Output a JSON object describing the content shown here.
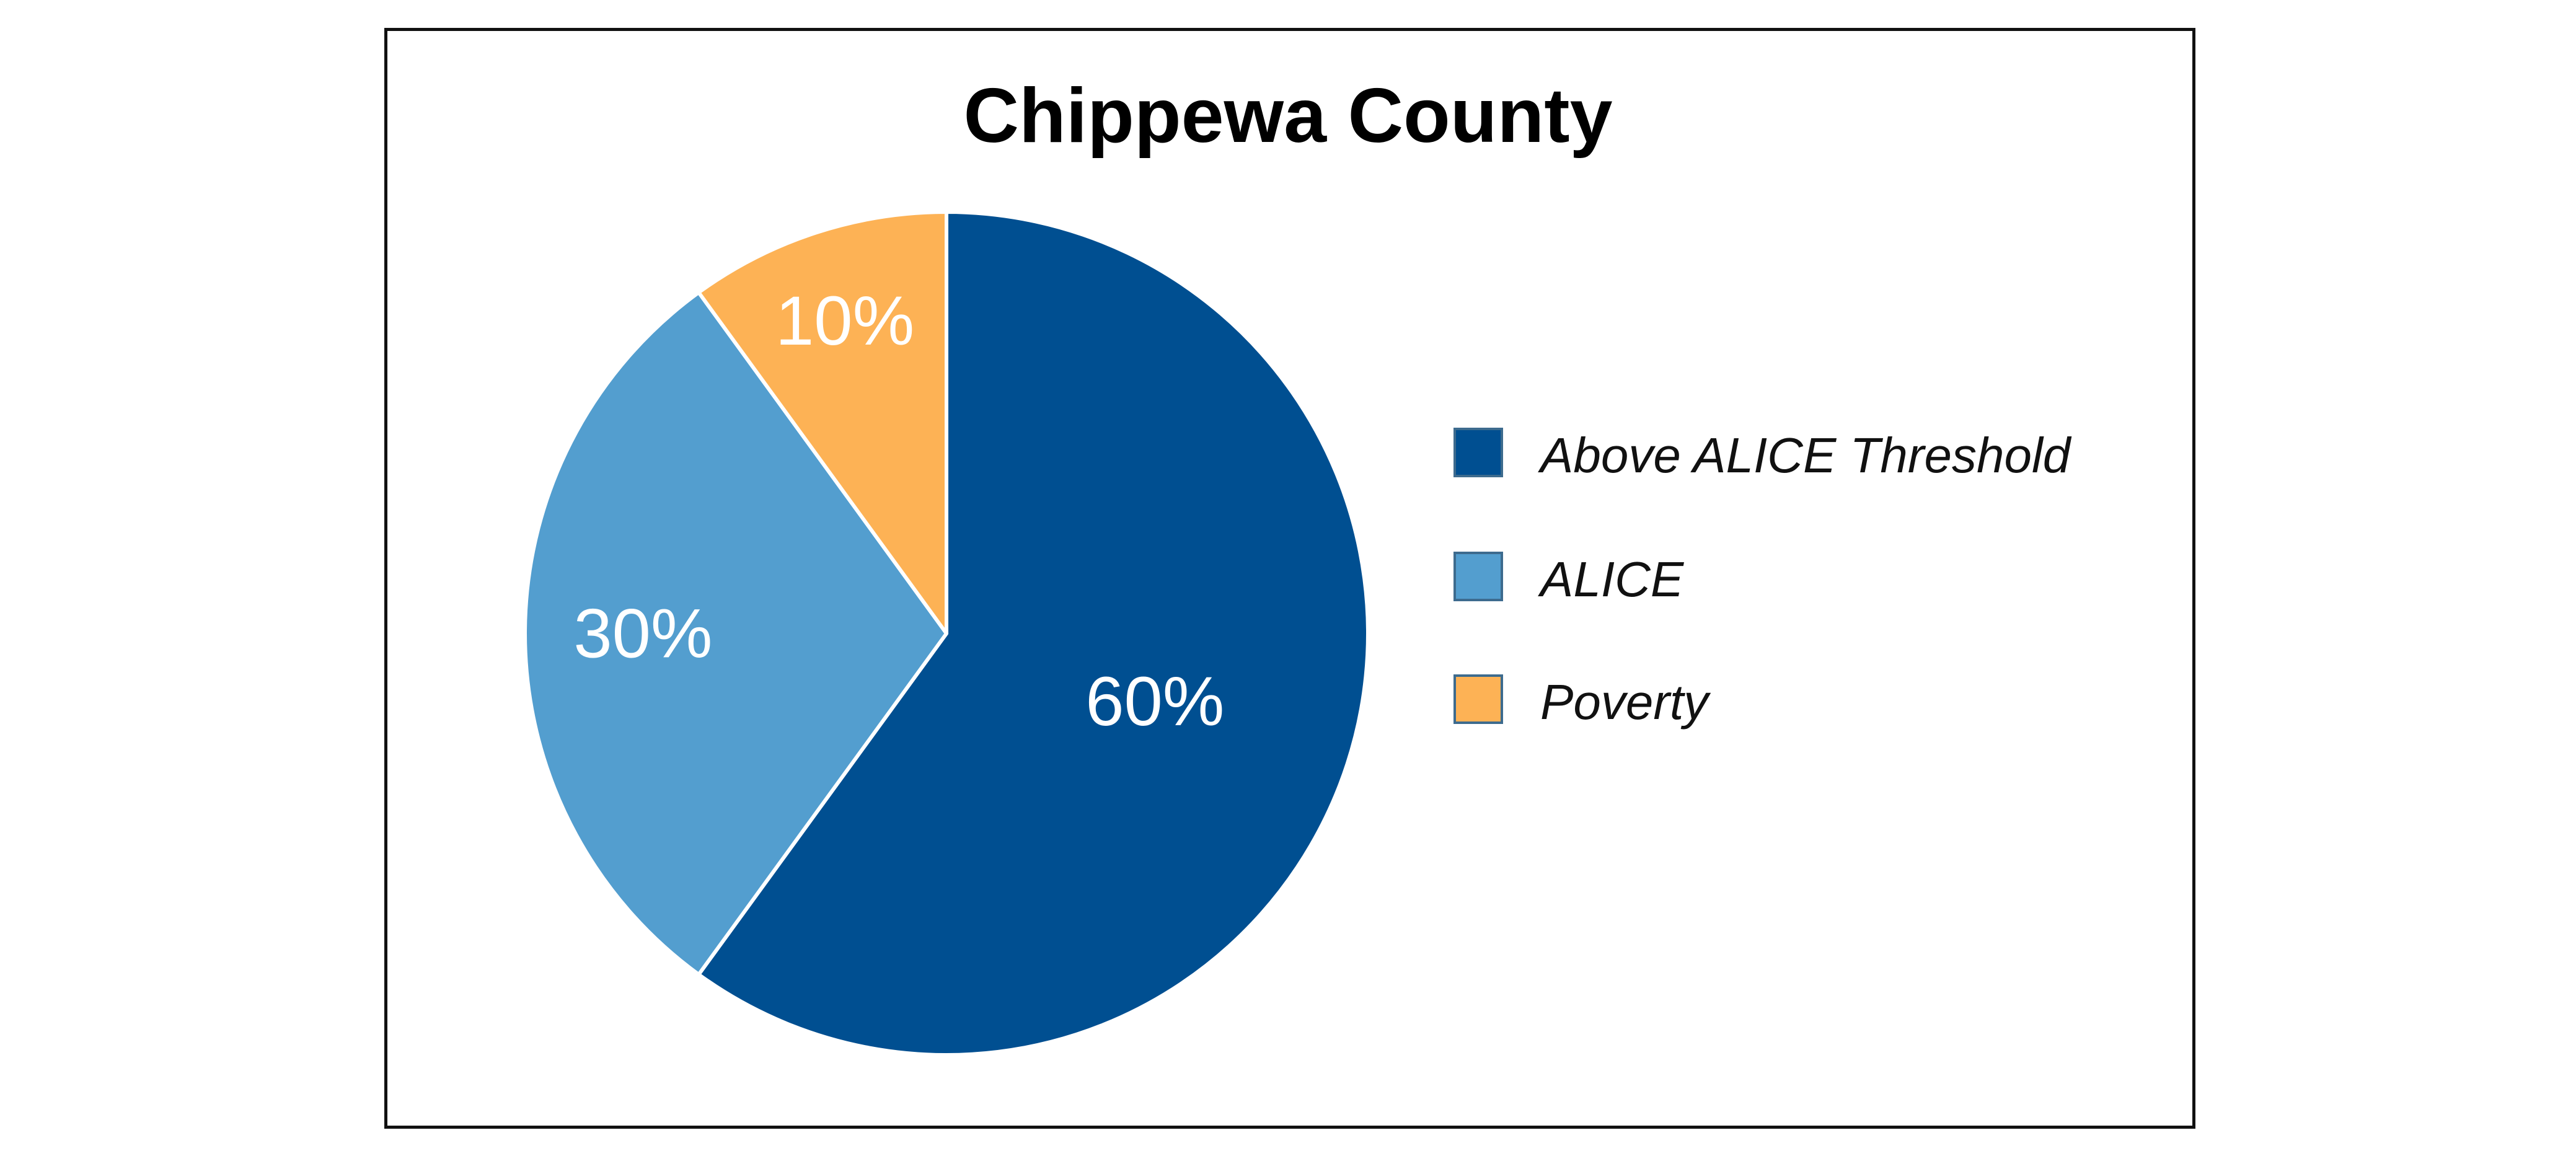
{
  "chart_data": {
    "type": "pie",
    "title": "Chippewa County",
    "slices": [
      {
        "label": "Above ALICE Threshold",
        "value": 60,
        "display": "60%",
        "color": "#004f91"
      },
      {
        "label": "ALICE",
        "value": 30,
        "display": "30%",
        "color": "#539ecf"
      },
      {
        "label": "Poverty",
        "value": 10,
        "display": "10%",
        "color": "#fdb255"
      }
    ],
    "legend_position": "right",
    "slice_label_color": "#ffffff",
    "slice_border_color": "#ffffff"
  }
}
